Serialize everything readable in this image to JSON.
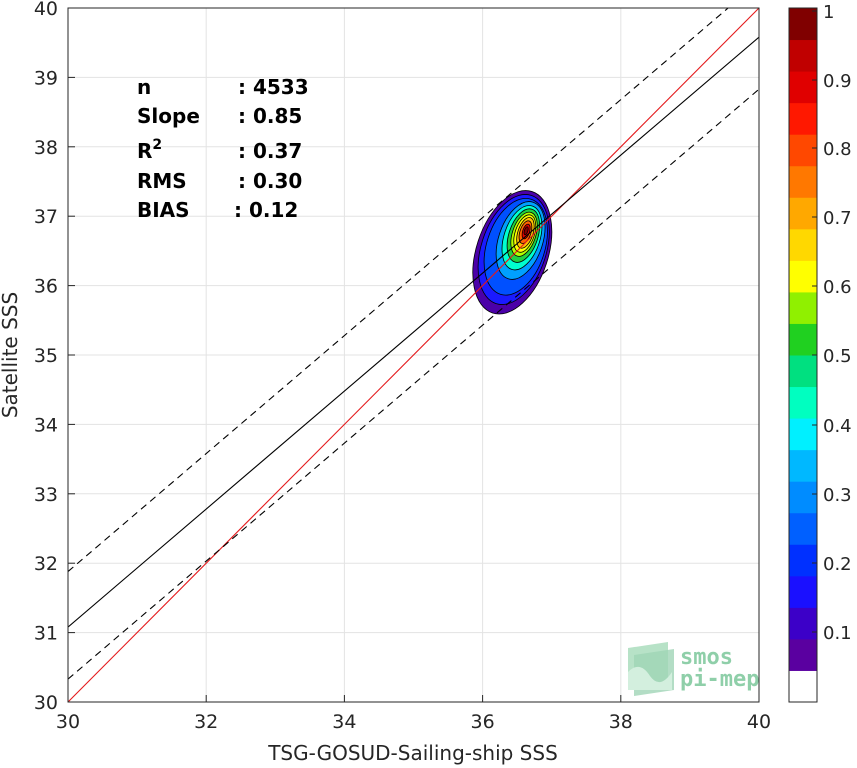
{
  "chart_data": {
    "type": "scatter",
    "xlabel": "TSG-GOSUD-Sailing-ship SSS",
    "ylabel": "Satellite SSS",
    "xlim": [
      30,
      40
    ],
    "ylim": [
      30,
      40
    ],
    "xticks": [
      "30",
      "32",
      "34",
      "36",
      "38",
      "40"
    ],
    "yticks": [
      "30",
      "31",
      "32",
      "33",
      "34",
      "35",
      "36",
      "37",
      "38",
      "39",
      "40"
    ],
    "grid": true,
    "stats": [
      {
        "label": "n",
        "value": ": 4533"
      },
      {
        "label": "Slope",
        "value": ": 0.85"
      },
      {
        "label": "R",
        "sup": "2",
        "value": ": 0.37"
      },
      {
        "label": "RMS",
        "value": ": 0.30"
      },
      {
        "label": "BIAS",
        "value": ": 0.12"
      }
    ],
    "lines": [
      {
        "kind": "identity",
        "color": "#e41a1c",
        "style": "solid",
        "points": [
          [
            30,
            30
          ],
          [
            40,
            40
          ]
        ]
      },
      {
        "kind": "regression",
        "color": "#000000",
        "style": "solid",
        "points": [
          [
            30,
            31.08
          ],
          [
            40,
            39.58
          ]
        ]
      },
      {
        "kind": "upper-bound",
        "color": "#000000",
        "style": "dashed",
        "points": [
          [
            30,
            31.88
          ],
          [
            40,
            40.38
          ]
        ]
      },
      {
        "kind": "lower-bound",
        "color": "#000000",
        "style": "dashed",
        "points": [
          [
            30,
            30.33
          ],
          [
            40,
            38.83
          ]
        ]
      }
    ],
    "density_contours": {
      "center": [
        36.62,
        36.78
      ],
      "levels": [
        {
          "level": 0.05,
          "color": "#4b00a8",
          "rx": 0.52,
          "ry": 0.92,
          "cx": 36.43,
          "cy": 36.48
        },
        {
          "level": 0.15,
          "color": "#1a1aff",
          "rx": 0.47,
          "ry": 0.82,
          "cx": 36.45,
          "cy": 36.52
        },
        {
          "level": 0.2,
          "color": "#0050ff",
          "rx": 0.42,
          "ry": 0.72,
          "cx": 36.48,
          "cy": 36.56
        },
        {
          "level": 0.3,
          "color": "#00a0ff",
          "rx": 0.32,
          "ry": 0.58,
          "cx": 36.55,
          "cy": 36.65
        },
        {
          "level": 0.4,
          "color": "#00ffd0",
          "rx": 0.26,
          "ry": 0.48,
          "cx": 36.57,
          "cy": 36.69
        },
        {
          "level": 0.5,
          "color": "#20d040",
          "rx": 0.21,
          "ry": 0.4,
          "cx": 36.59,
          "cy": 36.72
        },
        {
          "level": 0.6,
          "color": "#b0ff00",
          "rx": 0.17,
          "ry": 0.33,
          "cx": 36.6,
          "cy": 36.74
        },
        {
          "level": 0.65,
          "color": "#ffff00",
          "rx": 0.14,
          "ry": 0.28,
          "cx": 36.61,
          "cy": 36.75
        },
        {
          "level": 0.7,
          "color": "#ffc000",
          "rx": 0.11,
          "ry": 0.23,
          "cx": 36.62,
          "cy": 36.76
        },
        {
          "level": 0.8,
          "color": "#ff6000",
          "rx": 0.08,
          "ry": 0.17,
          "cx": 36.62,
          "cy": 36.77
        },
        {
          "level": 0.9,
          "color": "#e00000",
          "rx": 0.05,
          "ry": 0.11,
          "cx": 36.63,
          "cy": 36.78
        },
        {
          "level": 1.0,
          "color": "#800000",
          "rx": 0.025,
          "ry": 0.06,
          "cx": 36.63,
          "cy": 36.79
        }
      ]
    },
    "colorbar": {
      "ticks": [
        "0.1",
        "0.2",
        "0.3",
        "0.4",
        "0.5",
        "0.6",
        "0.7",
        "0.8",
        "0.9",
        "1"
      ],
      "bands": [
        "#ffffff",
        "#5a00a0",
        "#3c00c8",
        "#1a10ff",
        "#0030ff",
        "#0060ff",
        "#008cff",
        "#00b8ff",
        "#00f0ff",
        "#00ffc0",
        "#00e080",
        "#20d020",
        "#90f000",
        "#ffff00",
        "#ffd800",
        "#ffa800",
        "#ff7800",
        "#ff4800",
        "#ff1800",
        "#e00000",
        "#c00000",
        "#800000"
      ]
    }
  },
  "logo": {
    "line1": "smos",
    "line2": "pi-mep"
  }
}
